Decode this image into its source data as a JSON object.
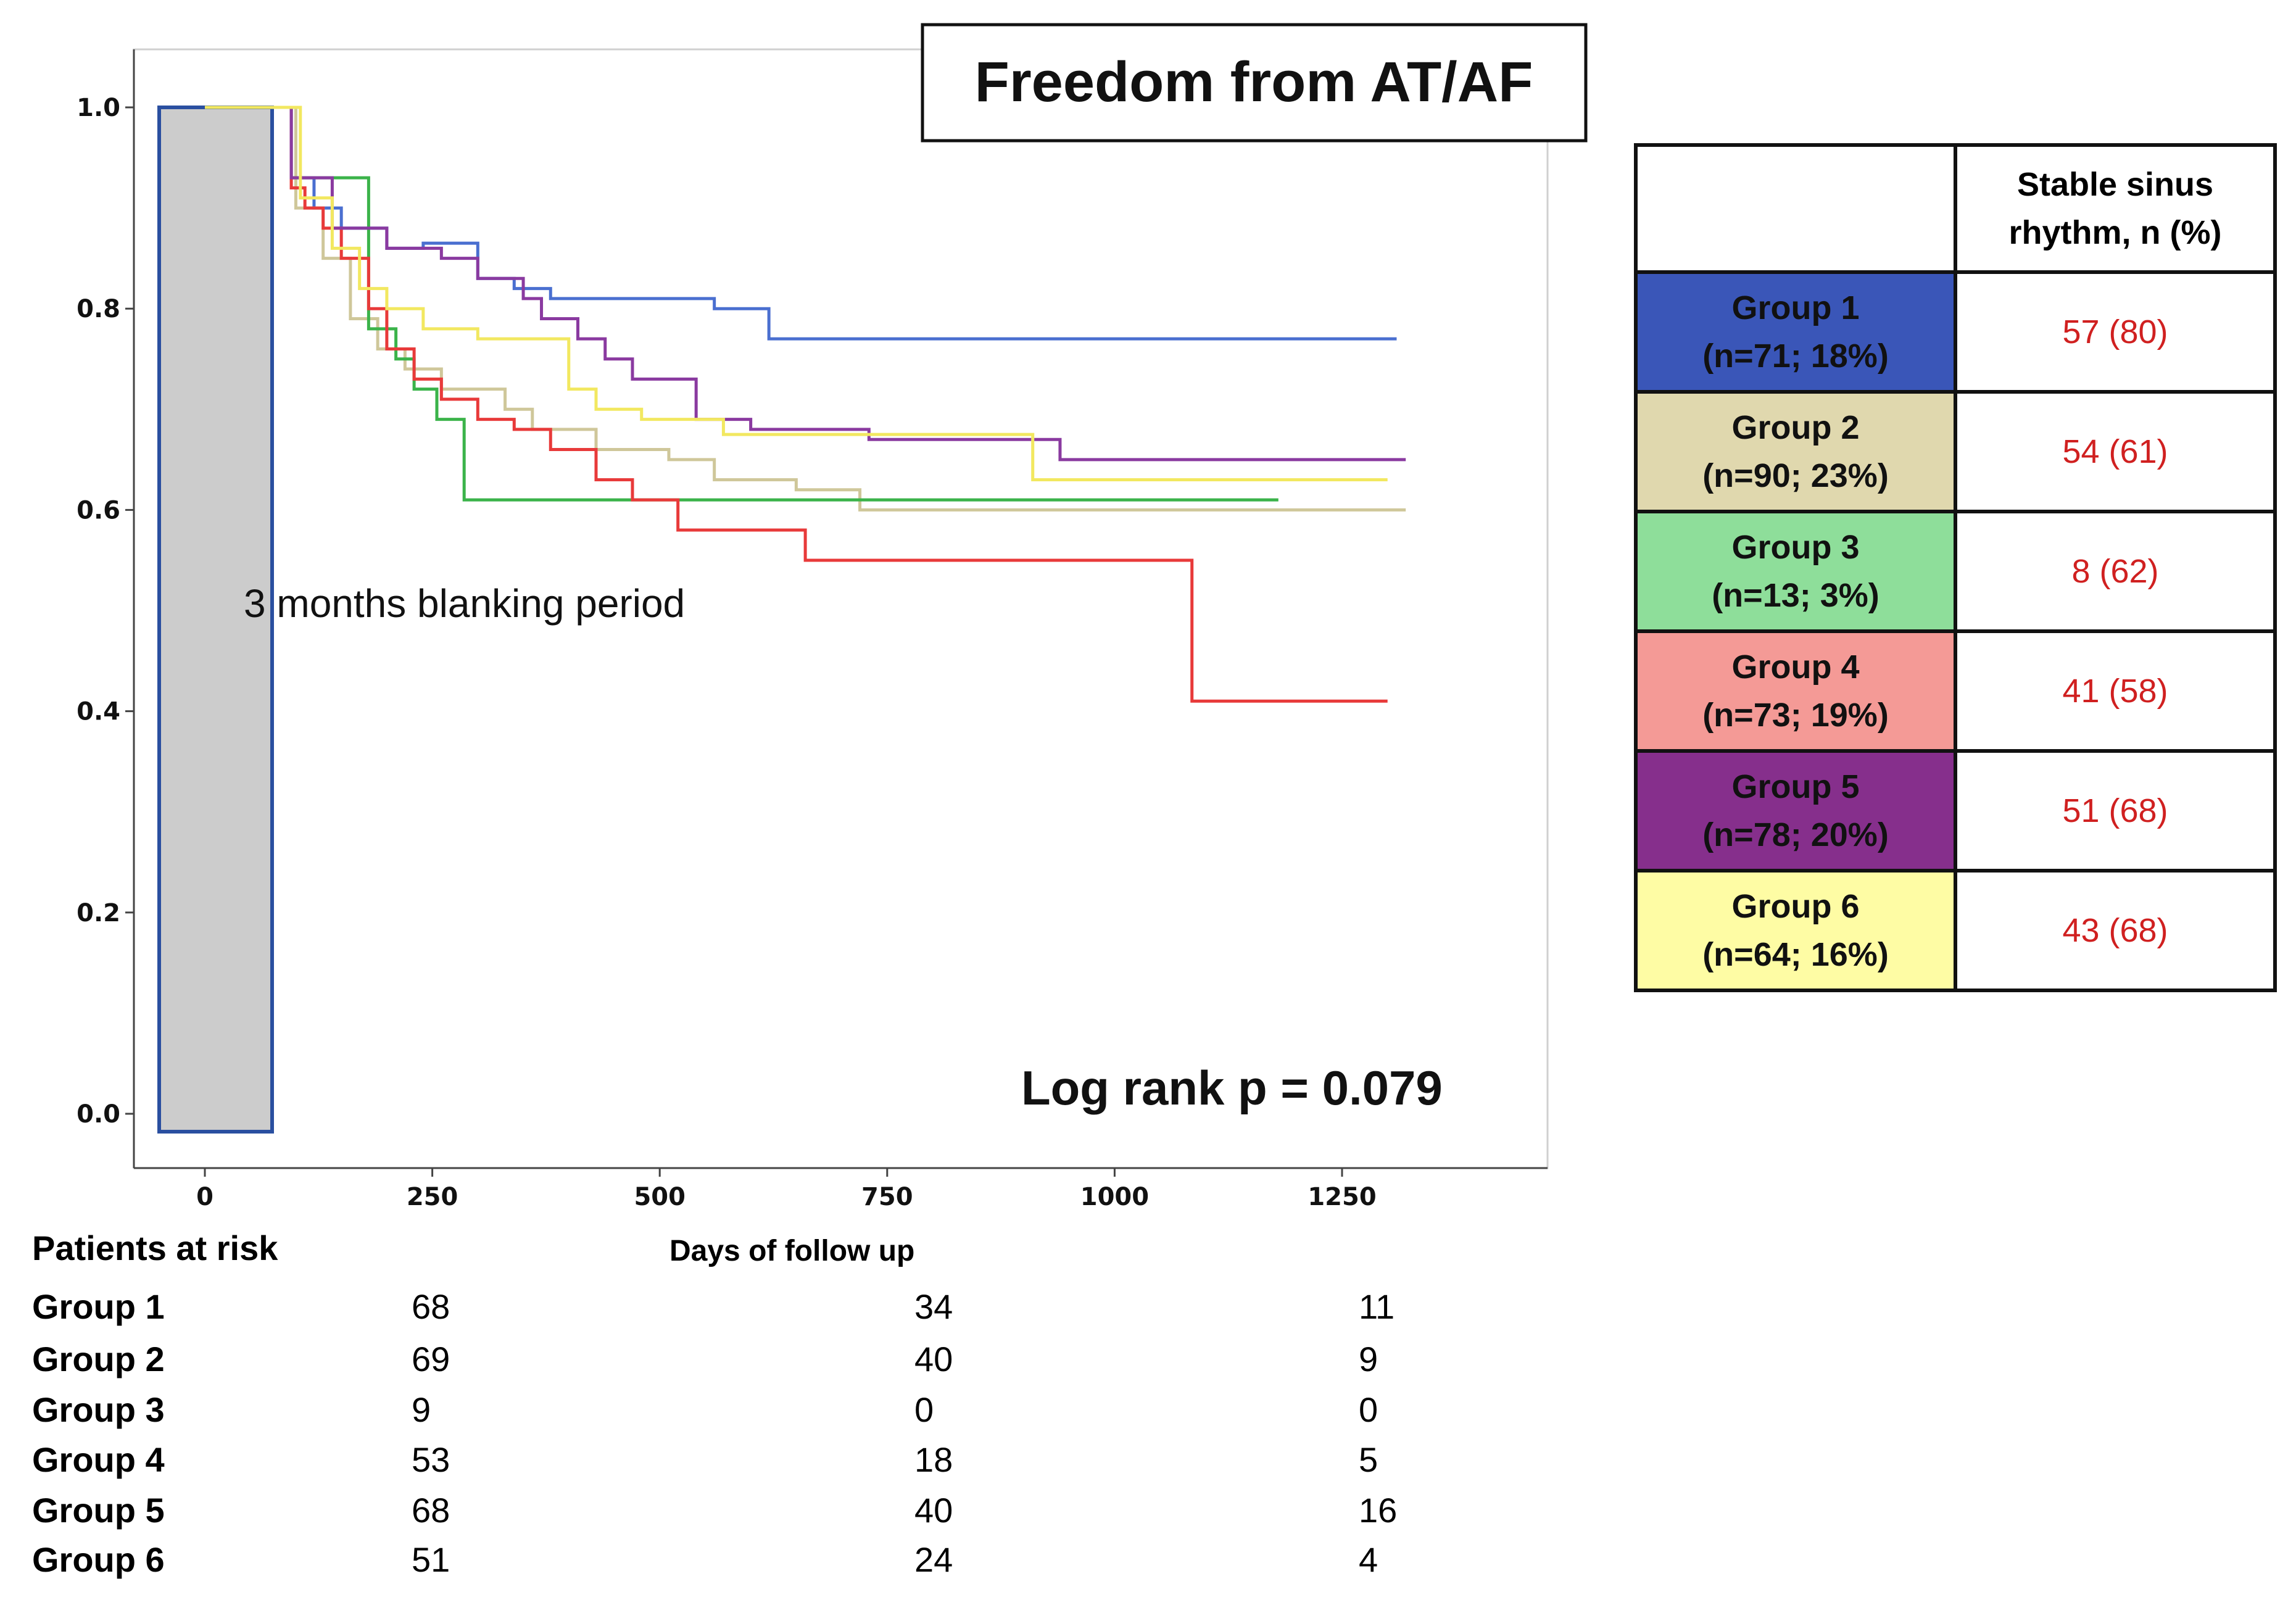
{
  "chart_data": {
    "type": "line",
    "subtype": "kaplan-meier",
    "title": "Freedom from AT/AF",
    "xlabel": "Days of follow up",
    "ylabel": "",
    "xlim": [
      -80,
      1480
    ],
    "ylim": [
      -0.05,
      1.05
    ],
    "x_ticks": [
      0,
      250,
      500,
      750,
      1000,
      1250
    ],
    "x_tick_labels": [
      "0",
      "250",
      "500",
      "750",
      "1000",
      "1250"
    ],
    "y_ticks": [
      0.0,
      0.2,
      0.4,
      0.6,
      0.8,
      1.0
    ],
    "y_tick_labels": [
      "0.0",
      "0.2",
      "0.4",
      "0.6",
      "0.8",
      "1.0"
    ],
    "annotations": {
      "blanking_text": "3 months blanking period",
      "blanking_range_days": [
        -50,
        75
      ],
      "logrank": "Log rank p = 0.079"
    },
    "series": [
      {
        "name": "Group 1",
        "color": "#4a6fd0",
        "points": [
          [
            0,
            1.0
          ],
          [
            90,
            1.0
          ],
          [
            95,
            0.93
          ],
          [
            120,
            0.9
          ],
          [
            150,
            0.88
          ],
          [
            200,
            0.86
          ],
          [
            240,
            0.865
          ],
          [
            300,
            0.83
          ],
          [
            340,
            0.82
          ],
          [
            380,
            0.81
          ],
          [
            560,
            0.8
          ],
          [
            620,
            0.77
          ],
          [
            1310,
            0.77
          ]
        ]
      },
      {
        "name": "Group 2",
        "color": "#cfc79a",
        "points": [
          [
            0,
            1.0
          ],
          [
            90,
            1.0
          ],
          [
            100,
            0.9
          ],
          [
            130,
            0.85
          ],
          [
            160,
            0.79
          ],
          [
            190,
            0.76
          ],
          [
            220,
            0.74
          ],
          [
            260,
            0.72
          ],
          [
            330,
            0.7
          ],
          [
            360,
            0.68
          ],
          [
            430,
            0.66
          ],
          [
            510,
            0.65
          ],
          [
            560,
            0.63
          ],
          [
            650,
            0.62
          ],
          [
            720,
            0.6
          ],
          [
            1320,
            0.6
          ]
        ]
      },
      {
        "name": "Group 3",
        "color": "#3bb34a",
        "points": [
          [
            0,
            1.0
          ],
          [
            90,
            1.0
          ],
          [
            95,
            0.93
          ],
          [
            170,
            0.93
          ],
          [
            180,
            0.78
          ],
          [
            210,
            0.75
          ],
          [
            230,
            0.72
          ],
          [
            255,
            0.69
          ],
          [
            280,
            0.69
          ],
          [
            285,
            0.61
          ],
          [
            1180,
            0.61
          ]
        ]
      },
      {
        "name": "Group 4",
        "color": "#e83a3a",
        "points": [
          [
            0,
            1.0
          ],
          [
            90,
            1.0
          ],
          [
            95,
            0.92
          ],
          [
            110,
            0.9
          ],
          [
            130,
            0.88
          ],
          [
            150,
            0.85
          ],
          [
            180,
            0.8
          ],
          [
            200,
            0.76
          ],
          [
            230,
            0.73
          ],
          [
            260,
            0.71
          ],
          [
            300,
            0.69
          ],
          [
            340,
            0.68
          ],
          [
            380,
            0.66
          ],
          [
            430,
            0.63
          ],
          [
            470,
            0.61
          ],
          [
            520,
            0.58
          ],
          [
            660,
            0.55
          ],
          [
            1080,
            0.55
          ],
          [
            1085,
            0.41
          ],
          [
            1300,
            0.41
          ]
        ]
      },
      {
        "name": "Group 5",
        "color": "#8a3aa0",
        "points": [
          [
            0,
            1.0
          ],
          [
            90,
            1.0
          ],
          [
            95,
            0.93
          ],
          [
            140,
            0.88
          ],
          [
            200,
            0.86
          ],
          [
            260,
            0.85
          ],
          [
            300,
            0.83
          ],
          [
            350,
            0.81
          ],
          [
            370,
            0.79
          ],
          [
            410,
            0.77
          ],
          [
            440,
            0.75
          ],
          [
            470,
            0.73
          ],
          [
            540,
            0.69
          ],
          [
            600,
            0.68
          ],
          [
            730,
            0.67
          ],
          [
            940,
            0.65
          ],
          [
            1320,
            0.65
          ]
        ]
      },
      {
        "name": "Group 6",
        "color": "#f2e860",
        "points": [
          [
            0,
            1.0
          ],
          [
            90,
            1.0
          ],
          [
            105,
            0.91
          ],
          [
            140,
            0.86
          ],
          [
            170,
            0.82
          ],
          [
            200,
            0.8
          ],
          [
            240,
            0.78
          ],
          [
            300,
            0.77
          ],
          [
            400,
            0.72
          ],
          [
            430,
            0.7
          ],
          [
            480,
            0.69
          ],
          [
            570,
            0.675
          ],
          [
            900,
            0.675
          ],
          [
            910,
            0.63
          ],
          [
            1300,
            0.63
          ]
        ]
      }
    ]
  },
  "table": {
    "header": [
      "",
      "Stable sinus\nrhythm, n (%)"
    ],
    "rows": [
      {
        "group": "Group 1",
        "n": "(n=71; 18%)",
        "value": "57 (80)",
        "bg": "#3a56b8"
      },
      {
        "group": "Group 2",
        "n": "(n=90; 23%)",
        "value": "54 (61)",
        "bg": "#e0d8ae"
      },
      {
        "group": "Group 3",
        "n": "(n=13; 3%)",
        "value": "8 (62)",
        "bg": "#8ede9a"
      },
      {
        "group": "Group 4",
        "n": "(n=73; 19%)",
        "value": "41 (58)",
        "bg": "#f49a96"
      },
      {
        "group": "Group 5",
        "n": "(n=78; 20%)",
        "value": "51 (68)",
        "bg": "#862f8c"
      },
      {
        "group": "Group 6",
        "n": "(n=64; 16%)",
        "value": "43 (68)",
        "bg": "#fefca4"
      }
    ]
  },
  "risk": {
    "title": "Patients at risk",
    "days_label": "Days of follow up",
    "rows": [
      {
        "name": "Group 1",
        "values": [
          "68",
          "34",
          "11"
        ]
      },
      {
        "name": "Group 2",
        "values": [
          "69",
          "40",
          "9"
        ]
      },
      {
        "name": "Group 3",
        "values": [
          "9",
          "0",
          "0"
        ]
      },
      {
        "name": "Group 4",
        "values": [
          "53",
          "18",
          "5"
        ]
      },
      {
        "name": "Group 5",
        "values": [
          "68",
          "40",
          "16"
        ]
      },
      {
        "name": "Group 6",
        "values": [
          "51",
          "24",
          "4"
        ]
      }
    ]
  }
}
